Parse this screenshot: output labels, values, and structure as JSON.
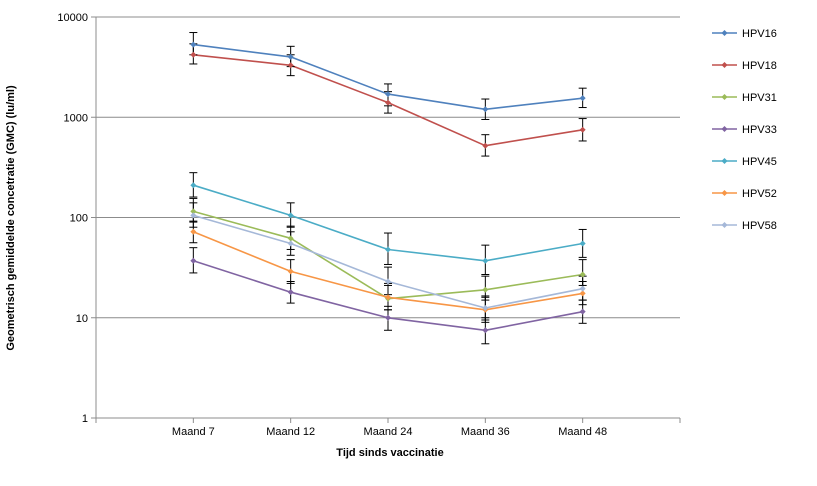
{
  "chart_data": {
    "type": "line",
    "title": "",
    "xlabel": "Tijd sinds vaccinatie",
    "ylabel": "Geometrisch gemiddelde concetratie (GMC) (lu/ml)",
    "yscale": "log",
    "ylim": [
      1,
      10000
    ],
    "yticks": [
      "1",
      "10",
      "100",
      "1000",
      "10000"
    ],
    "grid": true,
    "legend_position": "right",
    "categories": [
      "Maand 7",
      "Maand 12",
      "Maand 24",
      "Maand 36",
      "Maand 48"
    ],
    "series": [
      {
        "name": "HPV16",
        "color": "#4F81BD",
        "values": [
          5300,
          4000,
          1700,
          1200,
          1550
        ],
        "err_low": [
          4200,
          3200,
          1300,
          950,
          1250
        ],
        "err_high": [
          7000,
          5100,
          2150,
          1520,
          1950
        ]
      },
      {
        "name": "HPV18",
        "color": "#C0504D",
        "values": [
          4200,
          3300,
          1400,
          520,
          750
        ],
        "err_low": [
          3400,
          2600,
          1100,
          410,
          580
        ],
        "err_high": [
          5400,
          4200,
          1800,
          670,
          970
        ]
      },
      {
        "name": "HPV31",
        "color": "#9BBB59",
        "values": [
          115,
          62,
          15.5,
          19,
          27
        ],
        "err_low": [
          90,
          48,
          12,
          15,
          21
        ],
        "err_high": [
          155,
          82,
          22,
          26,
          38
        ]
      },
      {
        "name": "HPV33",
        "color": "#8064A2",
        "values": [
          37,
          18,
          10,
          7.5,
          11.5
        ],
        "err_low": [
          28,
          14,
          7.5,
          5.5,
          8.8
        ],
        "err_high": [
          50,
          23,
          13,
          10,
          15
        ]
      },
      {
        "name": "HPV45",
        "color": "#4BACC6",
        "values": [
          210,
          105,
          48,
          37,
          55
        ],
        "err_low": [
          160,
          80,
          34,
          27,
          40
        ],
        "err_high": [
          280,
          140,
          70,
          53,
          76
        ]
      },
      {
        "name": "HPV52",
        "color": "#F79646",
        "values": [
          72,
          29,
          16,
          12,
          17.5
        ],
        "err_low": [
          56,
          22,
          12,
          9,
          13.5
        ],
        "err_high": [
          92,
          38,
          21,
          16,
          23
        ]
      },
      {
        "name": "HPV58",
        "color": "#A5B8D8",
        "values": [
          105,
          55,
          23,
          12.5,
          19.5
        ],
        "err_low": [
          80,
          42,
          17,
          9.5,
          15
        ],
        "err_high": [
          140,
          72,
          32,
          16.5,
          26
        ]
      }
    ]
  }
}
